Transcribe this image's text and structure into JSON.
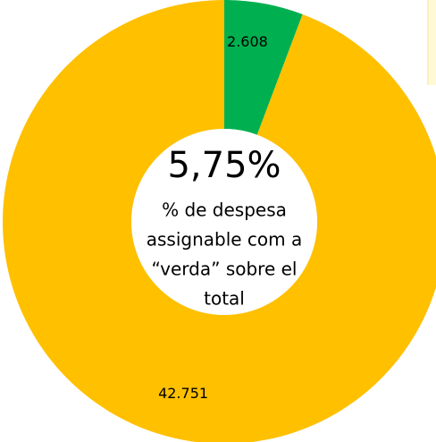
{
  "chart_data": {
    "type": "donut",
    "categories": [
      null,
      null
    ],
    "values": [
      2608,
      42751
    ],
    "value_labels": [
      "2.608",
      "42.751"
    ],
    "colors": [
      "#00b050",
      "#ffc000"
    ],
    "center_value": "5,75%",
    "center_text": [
      "% de despesa",
      "assignable com a",
      "“verda” sobre el",
      "total"
    ]
  }
}
